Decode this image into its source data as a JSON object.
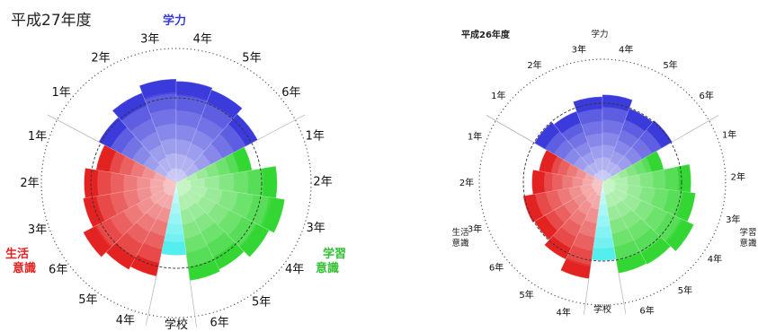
{
  "chart_data": [
    {
      "type": "polar-bar",
      "title": "平成27年度",
      "categories": [
        {
          "name": "学力",
          "color": "#3b3bdc",
          "segments": [
            {
              "label": "1年",
              "value": 0.8
            },
            {
              "label": "2年",
              "value": 0.88
            },
            {
              "label": "3年",
              "value": 0.95
            },
            {
              "label": "4年",
              "value": 0.93
            },
            {
              "label": "5年",
              "value": 0.91
            },
            {
              "label": "6年",
              "value": 0.84
            }
          ]
        },
        {
          "name": "学習意識",
          "color": "#33d633",
          "segments": [
            {
              "label": "1年",
              "value": 0.7
            },
            {
              "label": "2年",
              "value": 0.92
            },
            {
              "label": "3年",
              "value": 1.0
            },
            {
              "label": "4年",
              "value": 0.95
            },
            {
              "label": "5年",
              "value": 0.88
            },
            {
              "label": "6年",
              "value": 0.9
            }
          ]
        },
        {
          "name": "学校",
          "color": "#55eeee",
          "segments": [
            {
              "label": "",
              "value": 0.66
            }
          ]
        },
        {
          "name": "生活意識",
          "color": "#e32222",
          "segments": [
            {
              "label": "4年",
              "value": 0.87
            },
            {
              "label": "5年",
              "value": 0.9
            },
            {
              "label": "6年",
              "value": 0.96
            }
          ]
        },
        {
          "name": "生活意識",
          "color": "#e32222",
          "segments": [
            {
              "label": "3年",
              "value": 0.86
            },
            {
              "label": "2年",
              "value": 0.84
            },
            {
              "label": "1年",
              "value": 0.74
            }
          ]
        }
      ]
    },
    {
      "type": "polar-bar",
      "title": "平成26年度",
      "categories": [
        {
          "name": "学力",
          "color": "#3b3bdc",
          "segments": [
            {
              "label": "1年",
              "value": 0.78
            },
            {
              "label": "2年",
              "value": 0.75
            },
            {
              "label": "3年",
              "value": 0.85
            },
            {
              "label": "4年",
              "value": 0.87
            },
            {
              "label": "5年",
              "value": 0.78
            },
            {
              "label": "6年",
              "value": 0.8
            }
          ]
        },
        {
          "name": "学習意識",
          "color": "#33d633",
          "segments": [
            {
              "label": "1年",
              "value": 0.62
            },
            {
              "label": "2年",
              "value": 0.88
            },
            {
              "label": "3年",
              "value": 0.93
            },
            {
              "label": "4年",
              "value": 1.0
            },
            {
              "label": "5年",
              "value": 0.93
            },
            {
              "label": "6年",
              "value": 0.92
            }
          ]
        },
        {
          "name": "学校",
          "color": "#55eeee",
          "segments": [
            {
              "label": "",
              "value": 0.78
            }
          ]
        },
        {
          "name": "生活意識",
          "color": "#e32222",
          "segments": [
            {
              "label": "4年",
              "value": 0.97
            },
            {
              "label": "5年",
              "value": 0.85
            },
            {
              "label": "6年",
              "value": 0.78
            }
          ]
        },
        {
          "name": "生活意識",
          "color": "#e32222",
          "segments": [
            {
              "label": "3年",
              "value": 0.8
            },
            {
              "label": "2年",
              "value": 0.7
            },
            {
              "label": "1年",
              "value": 0.64
            }
          ]
        }
      ]
    }
  ],
  "labels": {
    "left": {
      "title": "平成27年度",
      "cat_gakuryoku": "学力",
      "cat_seikatsu_1": "生活",
      "cat_seikatsu_2": "意識",
      "cat_gakushu_1": "学習",
      "cat_gakushu_2": "意識",
      "cat_gakko": "学校"
    },
    "right": {
      "title": "平成26年度",
      "cat_gakuryoku": "学力",
      "cat_seikatsu_1": "生活",
      "cat_seikatsu_2": "意識",
      "cat_gakushu_1": "学習",
      "cat_gakushu_2": "意識",
      "cat_gakko": "学校"
    }
  }
}
